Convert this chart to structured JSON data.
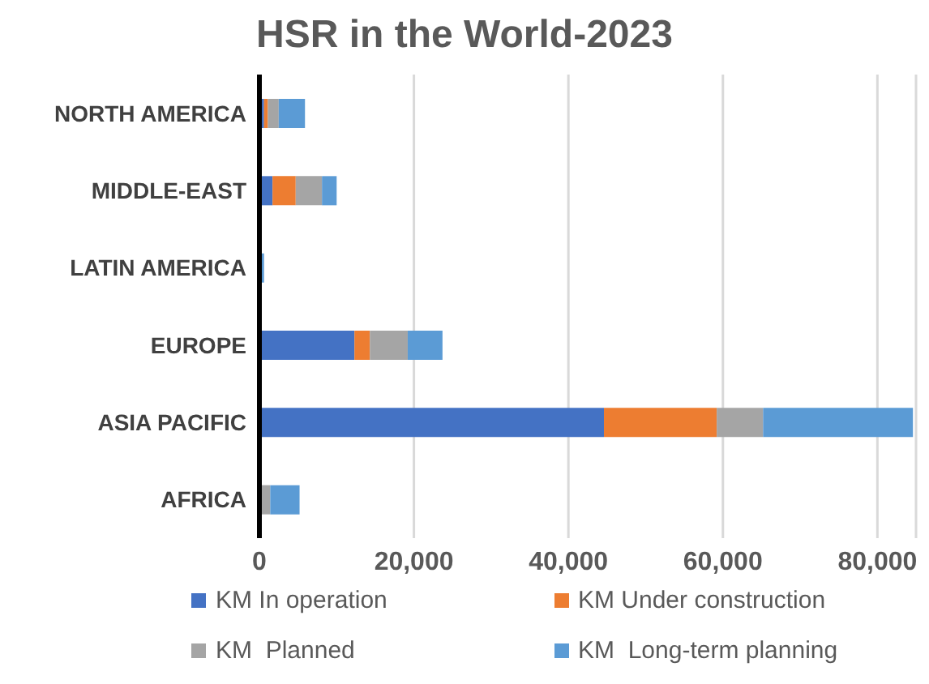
{
  "chart_data": {
    "type": "bar",
    "title": "HSR in the World-2023",
    "orientation": "horizontal",
    "stacked": true,
    "categories": [
      "NORTH AMERICA",
      "MIDDLE-EAST",
      "LATIN AMERICA",
      "EUROPE",
      "ASIA PACIFIC",
      "AFRICA"
    ],
    "series": [
      {
        "name": "KM In operation",
        "color": "#4472c4",
        "values": [
          600,
          1700,
          0,
          12300,
          44600,
          0
        ]
      },
      {
        "name": "KM Under construction",
        "color": "#ed7d31",
        "values": [
          500,
          3000,
          0,
          2000,
          14600,
          0
        ]
      },
      {
        "name": "KM  Planned",
        "color": "#a5a5a5",
        "values": [
          1400,
          3400,
          0,
          4900,
          6000,
          1400
        ]
      },
      {
        "name": "KM  Long-term planning",
        "color": "#5b9bd5",
        "values": [
          3400,
          1900,
          600,
          4500,
          19400,
          3800
        ]
      }
    ],
    "xlim": [
      0,
      85000
    ],
    "xticks": [
      0,
      {
        "value": 20000,
        "label": "20,000"
      },
      {
        "value": 40000,
        "label": "40,000"
      },
      {
        "value": 60000,
        "label": "60,000"
      },
      {
        "value": 80000,
        "label": "80,000"
      }
    ],
    "grid": "x",
    "legend": "bottom"
  }
}
